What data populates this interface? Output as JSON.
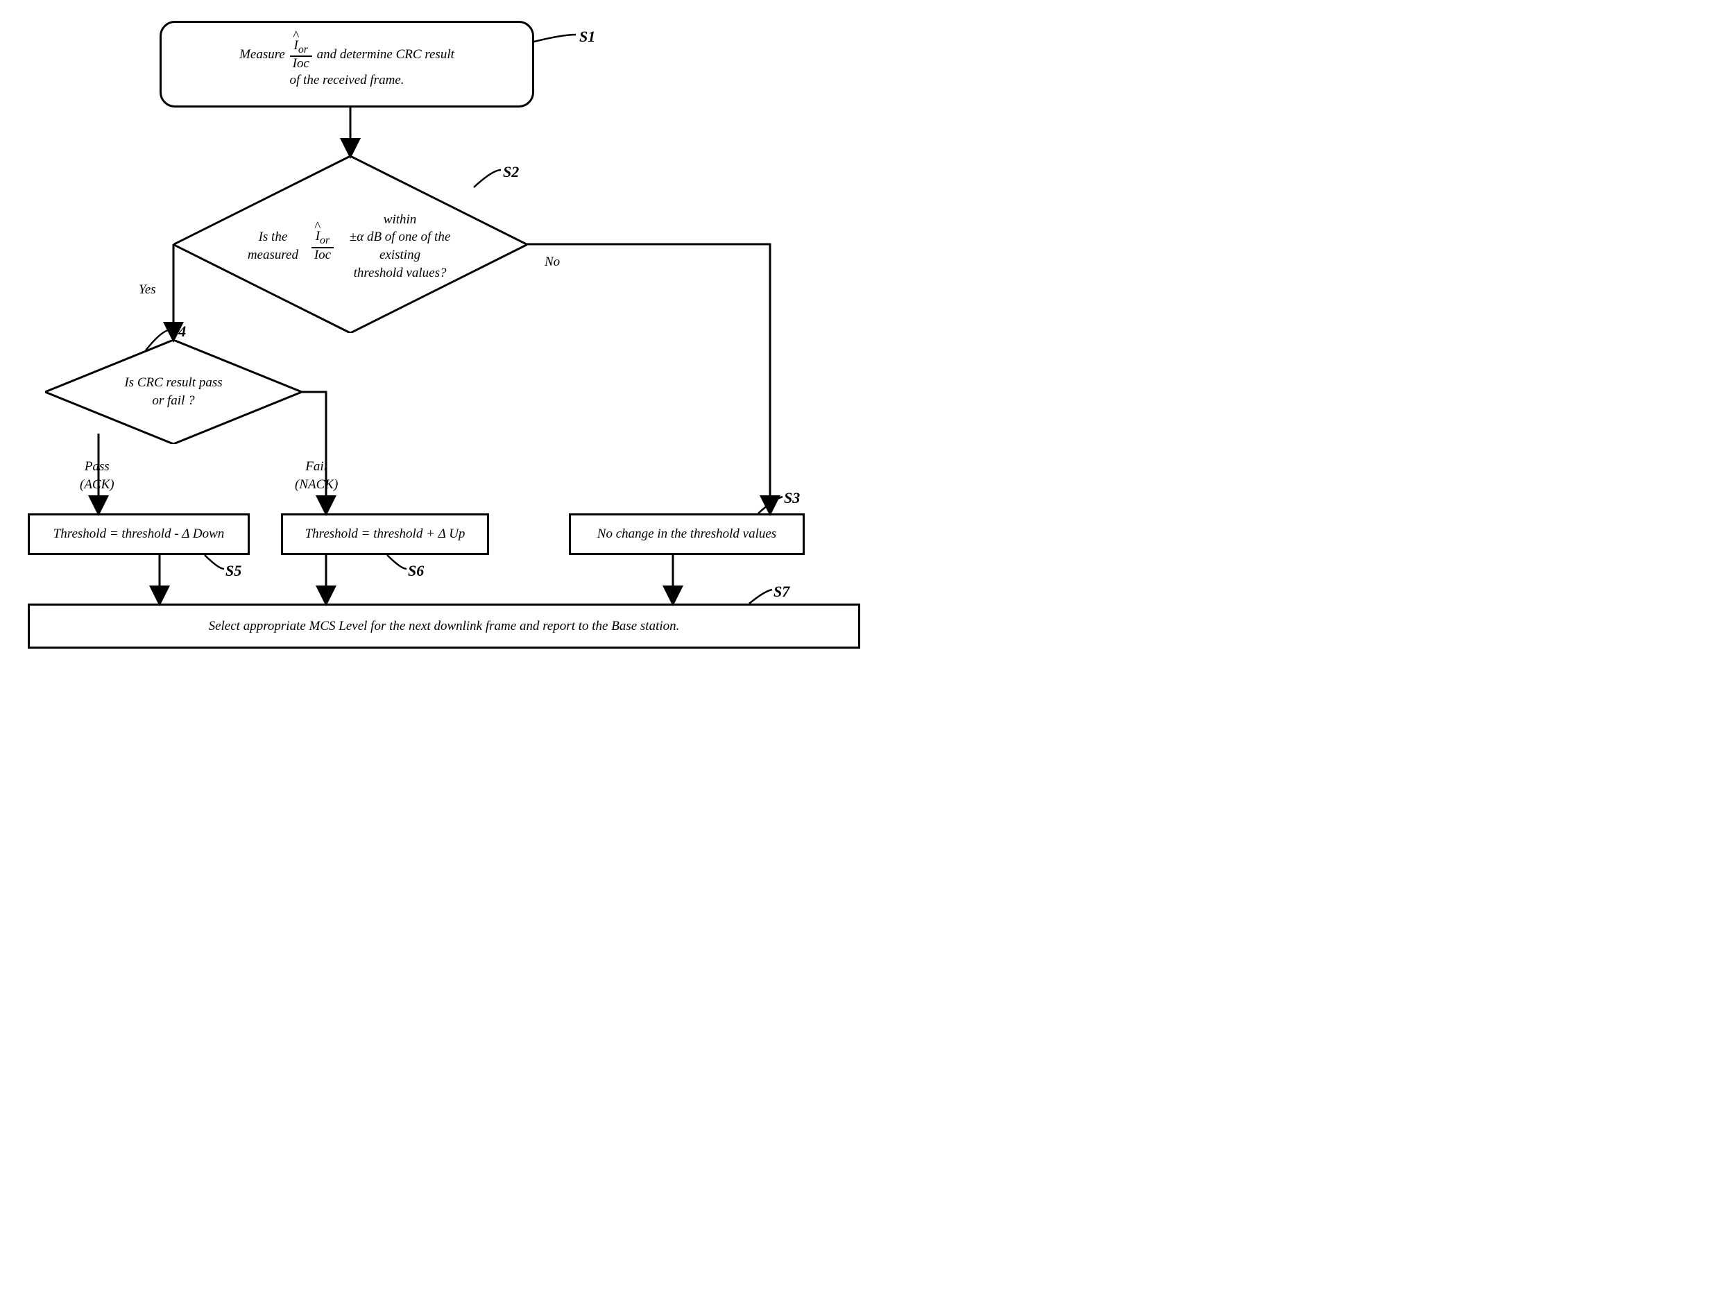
{
  "s1": {
    "html": "Measure <span class=\"frac\"><span class=\"num\"><span class=\"hat\">I</span><sub>or</sub></span><span class=\"den\">Ioc</span></span> and determine CRC result<br>of the received frame.",
    "label": "S1"
  },
  "s2": {
    "html": "Is the measured <span class=\"frac\"><span class=\"num\"><span class=\"hat\">I</span><sub>or</sub></span><span class=\"den\">Ioc</span></span> within<br>±α dB of one of the existing<br>threshold values?",
    "label": "S2",
    "yes": "Yes",
    "no": "No"
  },
  "s4": {
    "text": "Is CRC result pass\nor fail ?",
    "label": "S4",
    "pass": "Pass\n(ACK)",
    "fail": "Fail\n(NACK)"
  },
  "s5": {
    "text": "Threshold = threshold - Δ Down",
    "label": "S5"
  },
  "s6": {
    "text": "Threshold = threshold + Δ Up",
    "label": "S6"
  },
  "s3": {
    "text": "No change in the threshold values",
    "label": "S3"
  },
  "s7": {
    "text": "Select appropriate MCS Level for the next downlink frame and report to the Base station.",
    "label": "S7"
  },
  "style": {
    "stroke": "#000000",
    "strokeWidth": 3,
    "arrowSize": 9
  }
}
